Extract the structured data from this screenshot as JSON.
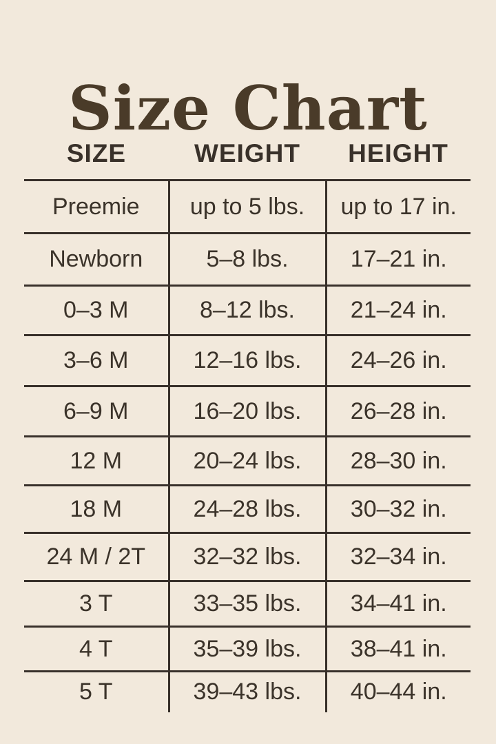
{
  "title": "Size Chart",
  "colors": {
    "background": "#f2e9dc",
    "title_text": "#4a3b29",
    "body_text": "#3b332a",
    "grid_lines": "#38302a"
  },
  "chart_data": {
    "type": "table",
    "title": "Size Chart",
    "columns": [
      "SIZE",
      "WEIGHT",
      "HEIGHT"
    ],
    "rows": [
      [
        "Preemie",
        "up to 5 lbs.",
        "up to 17 in."
      ],
      [
        "Newborn",
        "5–8 lbs.",
        "17–21 in."
      ],
      [
        "0–3 M",
        "8–12 lbs.",
        "21–24 in."
      ],
      [
        "3–6 M",
        "12–16 lbs.",
        "24–26 in."
      ],
      [
        "6–9 M",
        "16–20 lbs.",
        "26–28 in."
      ],
      [
        "12 M",
        "20–24 lbs.",
        "28–30 in."
      ],
      [
        "18 M",
        "24–28 lbs.",
        "30–32 in."
      ],
      [
        "24 M / 2T",
        "32–32 lbs.",
        "32–34 in."
      ],
      [
        "3 T",
        "33–35 lbs.",
        "34–41 in."
      ],
      [
        "4 T",
        "35–39 lbs.",
        "38–41 in."
      ],
      [
        "5 T",
        "39–43 lbs.",
        "40–44 in."
      ]
    ]
  }
}
